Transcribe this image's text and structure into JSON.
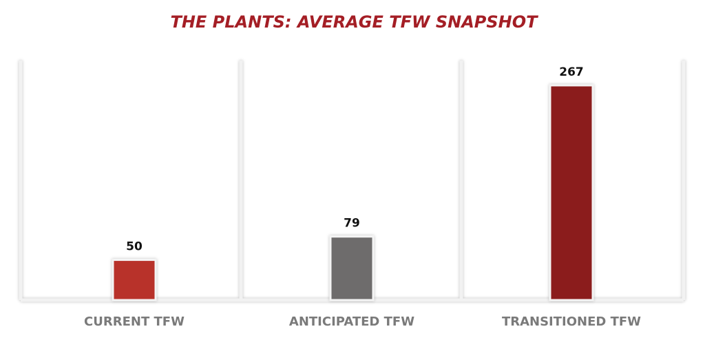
{
  "chart_data": {
    "type": "bar",
    "title": "THE PLANTS: AVERAGE TFW SNAPSHOT",
    "categories": [
      "CURRENT TFW",
      "ANTICIPATED TFW",
      "TRANSITIONED TFW"
    ],
    "values": [
      50,
      79,
      267
    ],
    "colors": [
      "#b8302c",
      "#6e6c6c",
      "#8b1e1e"
    ]
  }
}
